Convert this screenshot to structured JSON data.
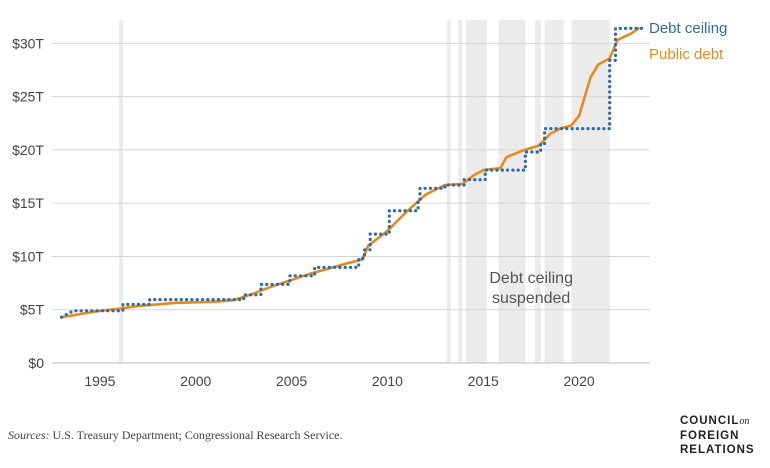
{
  "chart_data": {
    "type": "line",
    "title": "",
    "xlabel": "",
    "ylabel": "",
    "xlim": [
      1992.5,
      2023.7
    ],
    "ylim": [
      0,
      32
    ],
    "grid": true,
    "legend_position": "top-right",
    "x_ticks": [
      1995,
      2000,
      2005,
      2010,
      2015,
      2020
    ],
    "x_tick_labels": [
      "1995",
      "2000",
      "2005",
      "2010",
      "2015",
      "2020"
    ],
    "y_ticks": [
      0,
      5,
      10,
      15,
      20,
      25,
      30
    ],
    "y_tick_labels": [
      "$0",
      "$5T",
      "$10T",
      "$15T",
      "$20T",
      "$25T",
      "$30T"
    ],
    "series": [
      {
        "name": "Debt ceiling",
        "color": "#2E6DA4",
        "style": "dotted-step",
        "points": [
          [
            1993.0,
            4.3
          ],
          [
            1993.6,
            4.9
          ],
          [
            1996.2,
            4.9
          ],
          [
            1996.2,
            5.5
          ],
          [
            1997.6,
            5.5
          ],
          [
            1997.6,
            5.95
          ],
          [
            2002.5,
            5.95
          ],
          [
            2002.5,
            6.4
          ],
          [
            2003.4,
            6.4
          ],
          [
            2003.4,
            7.38
          ],
          [
            2004.9,
            7.38
          ],
          [
            2004.9,
            8.18
          ],
          [
            2006.2,
            8.18
          ],
          [
            2006.2,
            8.97
          ],
          [
            2008.5,
            8.97
          ],
          [
            2008.5,
            9.82
          ],
          [
            2008.8,
            9.82
          ],
          [
            2008.8,
            10.62
          ],
          [
            2009.1,
            10.62
          ],
          [
            2009.1,
            12.1
          ],
          [
            2010.1,
            12.1
          ],
          [
            2010.1,
            14.29
          ],
          [
            2011.6,
            14.29
          ],
          [
            2011.6,
            15.19
          ],
          [
            2011.7,
            15.19
          ],
          [
            2011.7,
            16.39
          ],
          [
            2013.0,
            16.39
          ],
          [
            2013.0,
            16.7
          ],
          [
            2014.0,
            16.7
          ],
          [
            2014.0,
            17.2
          ],
          [
            2015.1,
            17.2
          ],
          [
            2015.1,
            18.1
          ],
          [
            2017.2,
            18.1
          ],
          [
            2017.2,
            19.8
          ],
          [
            2018.0,
            19.8
          ],
          [
            2018.0,
            20.5
          ],
          [
            2018.2,
            20.5
          ],
          [
            2018.2,
            22.0
          ],
          [
            2021.6,
            22.0
          ],
          [
            2021.6,
            28.4
          ],
          [
            2021.9,
            28.4
          ],
          [
            2021.9,
            31.4
          ],
          [
            2023.3,
            31.4
          ]
        ]
      },
      {
        "name": "Public debt",
        "color": "#E58A1F",
        "style": "solid",
        "points": [
          [
            1993.0,
            4.3
          ],
          [
            1994.0,
            4.6
          ],
          [
            1995.0,
            4.9
          ],
          [
            1996.0,
            5.1
          ],
          [
            1997.0,
            5.35
          ],
          [
            1998.0,
            5.5
          ],
          [
            1999.0,
            5.65
          ],
          [
            2000.0,
            5.7
          ],
          [
            2001.0,
            5.75
          ],
          [
            2002.0,
            5.9
          ],
          [
            2003.0,
            6.5
          ],
          [
            2004.0,
            7.2
          ],
          [
            2005.0,
            7.8
          ],
          [
            2006.0,
            8.4
          ],
          [
            2007.0,
            8.9
          ],
          [
            2008.0,
            9.4
          ],
          [
            2008.7,
            9.7
          ],
          [
            2009.0,
            11.0
          ],
          [
            2010.0,
            12.4
          ],
          [
            2011.0,
            14.2
          ],
          [
            2012.0,
            15.8
          ],
          [
            2013.0,
            16.7
          ],
          [
            2013.9,
            16.8
          ],
          [
            2014.5,
            17.6
          ],
          [
            2015.0,
            18.1
          ],
          [
            2015.9,
            18.3
          ],
          [
            2016.2,
            19.3
          ],
          [
            2017.0,
            19.9
          ],
          [
            2017.9,
            20.4
          ],
          [
            2018.5,
            21.5
          ],
          [
            2019.0,
            22.0
          ],
          [
            2019.6,
            22.3
          ],
          [
            2020.0,
            23.2
          ],
          [
            2020.3,
            25.0
          ],
          [
            2020.6,
            26.8
          ],
          [
            2021.0,
            28.0
          ],
          [
            2021.6,
            28.6
          ],
          [
            2022.0,
            30.3
          ],
          [
            2022.7,
            30.9
          ],
          [
            2023.1,
            31.4
          ]
        ]
      }
    ],
    "suspension_periods": [
      [
        1996.0,
        1996.2
      ],
      [
        2013.1,
        2013.3
      ],
      [
        2013.7,
        2013.9
      ],
      [
        2014.1,
        2015.2
      ],
      [
        2015.8,
        2017.2
      ],
      [
        2017.7,
        2018.0
      ],
      [
        2018.2,
        2019.2
      ],
      [
        2019.6,
        2021.6
      ]
    ],
    "annotations": [
      {
        "text_lines": [
          "Debt ceiling",
          "suspended"
        ],
        "x": 2017.5,
        "y": 7.5
      }
    ]
  },
  "footer": {
    "sources_prefix": "Sources:",
    "sources_text": " U.S. Treasury Department; Congressional Research Service.",
    "logo_line1": "COUNCIL",
    "logo_on": "on",
    "logo_line2": "FOREIGN",
    "logo_line3": "RELATIONS"
  }
}
